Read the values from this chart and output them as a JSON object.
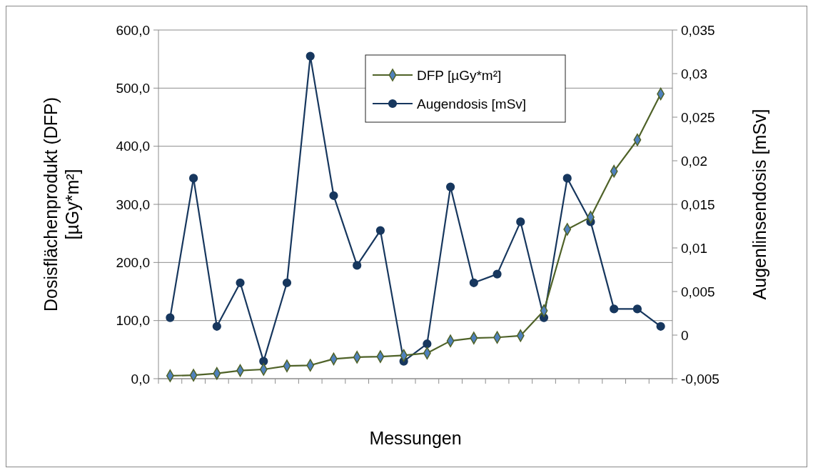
{
  "chart_data": {
    "type": "line",
    "xlabel": "Messungen",
    "ylabel": "Dosisflächenprodukt (DFP) [µGy*m²]",
    "y2label": "Augenlinsendosis [mSv]",
    "categories": [
      null,
      null,
      null,
      null,
      null,
      null,
      null,
      null,
      null,
      null,
      null,
      null,
      null,
      null,
      null,
      null,
      null,
      null,
      null,
      null,
      null,
      null
    ],
    "series": [
      {
        "name": "DFP [µGy*m²]",
        "color": "#4f6228",
        "marker": "diamond",
        "values": [
          5,
          6,
          9,
          14,
          16,
          22,
          23,
          34,
          37,
          38,
          40,
          44,
          65,
          70,
          71,
          74,
          117,
          257,
          278,
          357,
          411,
          490
        ]
      },
      {
        "name": "Augendosis [mSv]",
        "color": "#17375e",
        "marker": "circle",
        "axis": "y2",
        "values": [
          0.002,
          0.018,
          0.001,
          0.006,
          -0.003,
          0.006,
          0.032,
          0.016,
          0.008,
          0.012,
          -0.003,
          -0.001,
          0.017,
          0.006,
          0.007,
          0.013,
          0.002,
          0.018,
          0.013,
          0.003,
          0.003,
          0.001
        ]
      }
    ],
    "ylim": [
      0,
      600
    ],
    "yticks": [
      {
        "value": 0,
        "label": "0,0"
      },
      {
        "value": 100,
        "label": "100,0"
      },
      {
        "value": 200,
        "label": "200,0"
      },
      {
        "value": 300,
        "label": "300,0"
      },
      {
        "value": 400,
        "label": "400,0"
      },
      {
        "value": 500,
        "label": "500,0"
      },
      {
        "value": 600,
        "label": "600,0"
      }
    ],
    "y2lim": [
      -0.005,
      0.035
    ],
    "y2ticks": [
      {
        "value": -0.005,
        "label": "-0,005"
      },
      0,
      {
        "value": 0.005,
        "label": "0,005"
      },
      {
        "value": 0.01,
        "label": "0,01"
      },
      {
        "value": 0.015,
        "label": "0,015"
      },
      {
        "value": 0.02,
        "label": "0,02"
      },
      {
        "value": 0.025,
        "label": "0,025"
      },
      {
        "value": 0.03,
        "label": "0,03"
      },
      {
        "value": 0.035,
        "label": "0,035"
      }
    ],
    "grid": "y",
    "legend": "top",
    "tick_labels": "y"
  }
}
